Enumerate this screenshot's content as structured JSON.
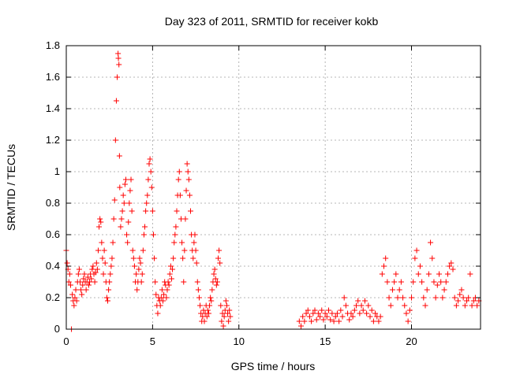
{
  "chart_data": {
    "type": "scatter",
    "title": "Day 323 of 2011, SRMTID for receiver kokb",
    "xlabel": "GPS time / hours",
    "ylabel": "SRMTID / TECUs",
    "xlim": [
      0,
      24
    ],
    "ylim": [
      0,
      1.8
    ],
    "xticks": [
      0,
      5,
      10,
      15,
      20
    ],
    "xtick_labels": [
      "0",
      "5",
      "10",
      "15",
      "20"
    ],
    "yticks": [
      0,
      0.2,
      0.4,
      0.6,
      0.8,
      1.0,
      1.2,
      1.4,
      1.6,
      1.8
    ],
    "ytick_labels": [
      "0",
      "0.2",
      "0.4",
      "0.6",
      "0.8",
      "1",
      "1.2",
      "1.4",
      "1.6",
      "1.8"
    ],
    "grid": true,
    "marker": "+",
    "marker_color": "#ff0000",
    "series": [
      {
        "name": "SRMTID",
        "points": [
          [
            0.0,
            0.5
          ],
          [
            0.05,
            0.42
          ],
          [
            0.1,
            0.38
          ],
          [
            0.15,
            0.3
          ],
          [
            0.2,
            0.35
          ],
          [
            0.25,
            0.28
          ],
          [
            0.3,
            0.0
          ],
          [
            0.35,
            0.22
          ],
          [
            0.4,
            0.18
          ],
          [
            0.45,
            0.15
          ],
          [
            0.5,
            0.2
          ],
          [
            0.55,
            0.25
          ],
          [
            0.6,
            0.18
          ],
          [
            0.65,
            0.3
          ],
          [
            0.7,
            0.35
          ],
          [
            0.75,
            0.38
          ],
          [
            0.8,
            0.3
          ],
          [
            0.85,
            0.25
          ],
          [
            0.9,
            0.22
          ],
          [
            0.95,
            0.28
          ],
          [
            1.0,
            0.32
          ],
          [
            1.05,
            0.35
          ],
          [
            1.1,
            0.3
          ],
          [
            1.15,
            0.25
          ],
          [
            1.2,
            0.3
          ],
          [
            1.25,
            0.33
          ],
          [
            1.3,
            0.28
          ],
          [
            1.35,
            0.3
          ],
          [
            1.4,
            0.35
          ],
          [
            1.45,
            0.32
          ],
          [
            1.5,
            0.38
          ],
          [
            1.55,
            0.4
          ],
          [
            1.6,
            0.35
          ],
          [
            1.65,
            0.3
          ],
          [
            1.7,
            0.36
          ],
          [
            1.75,
            0.42
          ],
          [
            1.8,
            0.38
          ],
          [
            1.85,
            0.5
          ],
          [
            1.9,
            0.65
          ],
          [
            1.95,
            0.7
          ],
          [
            2.0,
            0.68
          ],
          [
            2.05,
            0.55
          ],
          [
            2.1,
            0.45
          ],
          [
            2.15,
            0.35
          ],
          [
            2.2,
            0.5
          ],
          [
            2.25,
            0.42
          ],
          [
            2.3,
            0.3
          ],
          [
            2.35,
            0.2
          ],
          [
            2.4,
            0.18
          ],
          [
            2.45,
            0.25
          ],
          [
            2.5,
            0.3
          ],
          [
            2.55,
            0.35
          ],
          [
            2.6,
            0.4
          ],
          [
            2.65,
            0.45
          ],
          [
            2.7,
            0.55
          ],
          [
            2.75,
            0.7
          ],
          [
            2.8,
            0.82
          ],
          [
            2.85,
            1.2
          ],
          [
            2.9,
            1.45
          ],
          [
            2.95,
            1.6
          ],
          [
            3.0,
            1.75
          ],
          [
            3.02,
            1.72
          ],
          [
            3.05,
            1.68
          ],
          [
            3.08,
            1.1
          ],
          [
            3.1,
            0.9
          ],
          [
            3.15,
            0.65
          ],
          [
            3.2,
            0.7
          ],
          [
            3.25,
            0.75
          ],
          [
            3.3,
            0.85
          ],
          [
            3.35,
            0.8
          ],
          [
            3.4,
            0.92
          ],
          [
            3.45,
            0.95
          ],
          [
            3.5,
            0.6
          ],
          [
            3.55,
            0.55
          ],
          [
            3.6,
            0.68
          ],
          [
            3.65,
            0.8
          ],
          [
            3.7,
            0.88
          ],
          [
            3.75,
            0.95
          ],
          [
            3.8,
            0.75
          ],
          [
            3.85,
            0.5
          ],
          [
            3.9,
            0.45
          ],
          [
            3.95,
            0.4
          ],
          [
            4.0,
            0.3
          ],
          [
            4.05,
            0.35
          ],
          [
            4.1,
            0.25
          ],
          [
            4.15,
            0.3
          ],
          [
            4.2,
            0.38
          ],
          [
            4.25,
            0.45
          ],
          [
            4.3,
            0.42
          ],
          [
            4.35,
            0.3
          ],
          [
            4.4,
            0.35
          ],
          [
            4.45,
            0.5
          ],
          [
            4.5,
            0.6
          ],
          [
            4.55,
            0.65
          ],
          [
            4.6,
            0.75
          ],
          [
            4.65,
            0.8
          ],
          [
            4.7,
            0.85
          ],
          [
            4.75,
            0.95
          ],
          [
            4.8,
            1.05
          ],
          [
            4.85,
            1.08
          ],
          [
            4.9,
            1.0
          ],
          [
            4.95,
            0.9
          ],
          [
            5.0,
            0.75
          ],
          [
            5.05,
            0.6
          ],
          [
            5.1,
            0.45
          ],
          [
            5.15,
            0.3
          ],
          [
            5.2,
            0.22
          ],
          [
            5.25,
            0.15
          ],
          [
            5.3,
            0.1
          ],
          [
            5.35,
            0.2
          ],
          [
            5.4,
            0.18
          ],
          [
            5.45,
            0.15
          ],
          [
            5.5,
            0.2
          ],
          [
            5.55,
            0.25
          ],
          [
            5.6,
            0.18
          ],
          [
            5.65,
            0.22
          ],
          [
            5.7,
            0.3
          ],
          [
            5.75,
            0.28
          ],
          [
            5.8,
            0.2
          ],
          [
            5.85,
            0.25
          ],
          [
            5.9,
            0.3
          ],
          [
            5.95,
            0.28
          ],
          [
            6.0,
            0.35
          ],
          [
            6.05,
            0.4
          ],
          [
            6.1,
            0.32
          ],
          [
            6.15,
            0.38
          ],
          [
            6.2,
            0.45
          ],
          [
            6.25,
            0.55
          ],
          [
            6.3,
            0.6
          ],
          [
            6.35,
            0.65
          ],
          [
            6.4,
            0.75
          ],
          [
            6.45,
            0.85
          ],
          [
            6.5,
            0.95
          ],
          [
            6.55,
            1.0
          ],
          [
            6.6,
            0.85
          ],
          [
            6.65,
            0.7
          ],
          [
            6.7,
            0.55
          ],
          [
            6.75,
            0.45
          ],
          [
            6.8,
            0.3
          ],
          [
            6.85,
            0.5
          ],
          [
            6.9,
            0.7
          ],
          [
            6.95,
            0.88
          ],
          [
            7.0,
            1.05
          ],
          [
            7.05,
            1.0
          ],
          [
            7.1,
            0.95
          ],
          [
            7.15,
            0.85
          ],
          [
            7.2,
            0.75
          ],
          [
            7.25,
            0.6
          ],
          [
            7.3,
            0.5
          ],
          [
            7.35,
            0.45
          ],
          [
            7.4,
            0.55
          ],
          [
            7.45,
            0.6
          ],
          [
            7.5,
            0.5
          ],
          [
            7.55,
            0.42
          ],
          [
            7.6,
            0.3
          ],
          [
            7.65,
            0.25
          ],
          [
            7.7,
            0.2
          ],
          [
            7.75,
            0.15
          ],
          [
            7.8,
            0.1
          ],
          [
            7.85,
            0.05
          ],
          [
            7.9,
            0.08
          ],
          [
            7.95,
            0.12
          ],
          [
            8.0,
            0.05
          ],
          [
            8.05,
            0.1
          ],
          [
            8.1,
            0.15
          ],
          [
            8.15,
            0.08
          ],
          [
            8.2,
            0.12
          ],
          [
            8.25,
            0.1
          ],
          [
            8.3,
            0.15
          ],
          [
            8.35,
            0.2
          ],
          [
            8.4,
            0.18
          ],
          [
            8.45,
            0.25
          ],
          [
            8.5,
            0.3
          ],
          [
            8.55,
            0.35
          ],
          [
            8.6,
            0.38
          ],
          [
            8.65,
            0.32
          ],
          [
            8.7,
            0.28
          ],
          [
            8.75,
            0.3
          ],
          [
            8.8,
            0.45
          ],
          [
            8.85,
            0.5
          ],
          [
            8.9,
            0.42
          ],
          [
            8.95,
            0.15
          ],
          [
            9.0,
            0.05
          ],
          [
            9.05,
            0.1
          ],
          [
            9.1,
            0.02
          ],
          [
            9.15,
            0.08
          ],
          [
            9.2,
            0.12
          ],
          [
            9.25,
            0.18
          ],
          [
            9.3,
            0.15
          ],
          [
            9.35,
            0.1
          ],
          [
            9.4,
            0.05
          ],
          [
            9.45,
            0.12
          ],
          [
            9.5,
            0.08
          ],
          [
            13.5,
            0.05
          ],
          [
            13.6,
            0.02
          ],
          [
            13.7,
            0.08
          ],
          [
            13.8,
            0.05
          ],
          [
            13.9,
            0.1
          ],
          [
            14.0,
            0.12
          ],
          [
            14.1,
            0.08
          ],
          [
            14.2,
            0.05
          ],
          [
            14.3,
            0.1
          ],
          [
            14.4,
            0.12
          ],
          [
            14.5,
            0.06
          ],
          [
            14.6,
            0.1
          ],
          [
            14.7,
            0.08
          ],
          [
            14.8,
            0.12
          ],
          [
            14.9,
            0.06
          ],
          [
            15.0,
            0.1
          ],
          [
            15.1,
            0.08
          ],
          [
            15.2,
            0.12
          ],
          [
            15.3,
            0.06
          ],
          [
            15.4,
            0.1
          ],
          [
            15.5,
            0.05
          ],
          [
            15.6,
            0.08
          ],
          [
            15.7,
            0.1
          ],
          [
            15.8,
            0.05
          ],
          [
            15.9,
            0.12
          ],
          [
            16.0,
            0.08
          ],
          [
            16.1,
            0.2
          ],
          [
            16.2,
            0.15
          ],
          [
            16.3,
            0.1
          ],
          [
            16.4,
            0.06
          ],
          [
            16.5,
            0.1
          ],
          [
            16.6,
            0.08
          ],
          [
            16.7,
            0.12
          ],
          [
            16.8,
            0.15
          ],
          [
            16.9,
            0.18
          ],
          [
            17.0,
            0.1
          ],
          [
            17.1,
            0.15
          ],
          [
            17.2,
            0.12
          ],
          [
            17.3,
            0.18
          ],
          [
            17.4,
            0.1
          ],
          [
            17.5,
            0.15
          ],
          [
            17.6,
            0.08
          ],
          [
            17.7,
            0.12
          ],
          [
            17.8,
            0.05
          ],
          [
            17.9,
            0.1
          ],
          [
            18.0,
            0.08
          ],
          [
            18.1,
            0.05
          ],
          [
            18.2,
            0.08
          ],
          [
            18.3,
            0.35
          ],
          [
            18.4,
            0.4
          ],
          [
            18.5,
            0.45
          ],
          [
            18.6,
            0.3
          ],
          [
            18.7,
            0.2
          ],
          [
            18.8,
            0.15
          ],
          [
            18.9,
            0.25
          ],
          [
            19.0,
            0.3
          ],
          [
            19.1,
            0.35
          ],
          [
            19.2,
            0.2
          ],
          [
            19.3,
            0.25
          ],
          [
            19.4,
            0.3
          ],
          [
            19.5,
            0.2
          ],
          [
            19.6,
            0.15
          ],
          [
            19.7,
            0.1
          ],
          [
            19.8,
            0.05
          ],
          [
            19.9,
            0.12
          ],
          [
            20.0,
            0.2
          ],
          [
            20.1,
            0.3
          ],
          [
            20.2,
            0.45
          ],
          [
            20.3,
            0.5
          ],
          [
            20.4,
            0.35
          ],
          [
            20.5,
            0.4
          ],
          [
            20.6,
            0.3
          ],
          [
            20.7,
            0.2
          ],
          [
            20.8,
            0.15
          ],
          [
            20.9,
            0.25
          ],
          [
            21.0,
            0.35
          ],
          [
            21.1,
            0.55
          ],
          [
            21.2,
            0.45
          ],
          [
            21.3,
            0.3
          ],
          [
            21.4,
            0.2
          ],
          [
            21.5,
            0.28
          ],
          [
            21.6,
            0.35
          ],
          [
            21.7,
            0.3
          ],
          [
            21.8,
            0.2
          ],
          [
            21.9,
            0.25
          ],
          [
            22.0,
            0.3
          ],
          [
            22.1,
            0.35
          ],
          [
            22.2,
            0.4
          ],
          [
            22.3,
            0.42
          ],
          [
            22.4,
            0.38
          ],
          [
            22.5,
            0.2
          ],
          [
            22.6,
            0.15
          ],
          [
            22.7,
            0.18
          ],
          [
            22.8,
            0.22
          ],
          [
            22.9,
            0.25
          ],
          [
            23.0,
            0.2
          ],
          [
            23.1,
            0.15
          ],
          [
            23.2,
            0.18
          ],
          [
            23.3,
            0.2
          ],
          [
            23.4,
            0.35
          ],
          [
            23.5,
            0.15
          ],
          [
            23.6,
            0.18
          ],
          [
            23.7,
            0.2
          ],
          [
            23.8,
            0.15
          ],
          [
            23.9,
            0.18
          ]
        ]
      }
    ]
  }
}
